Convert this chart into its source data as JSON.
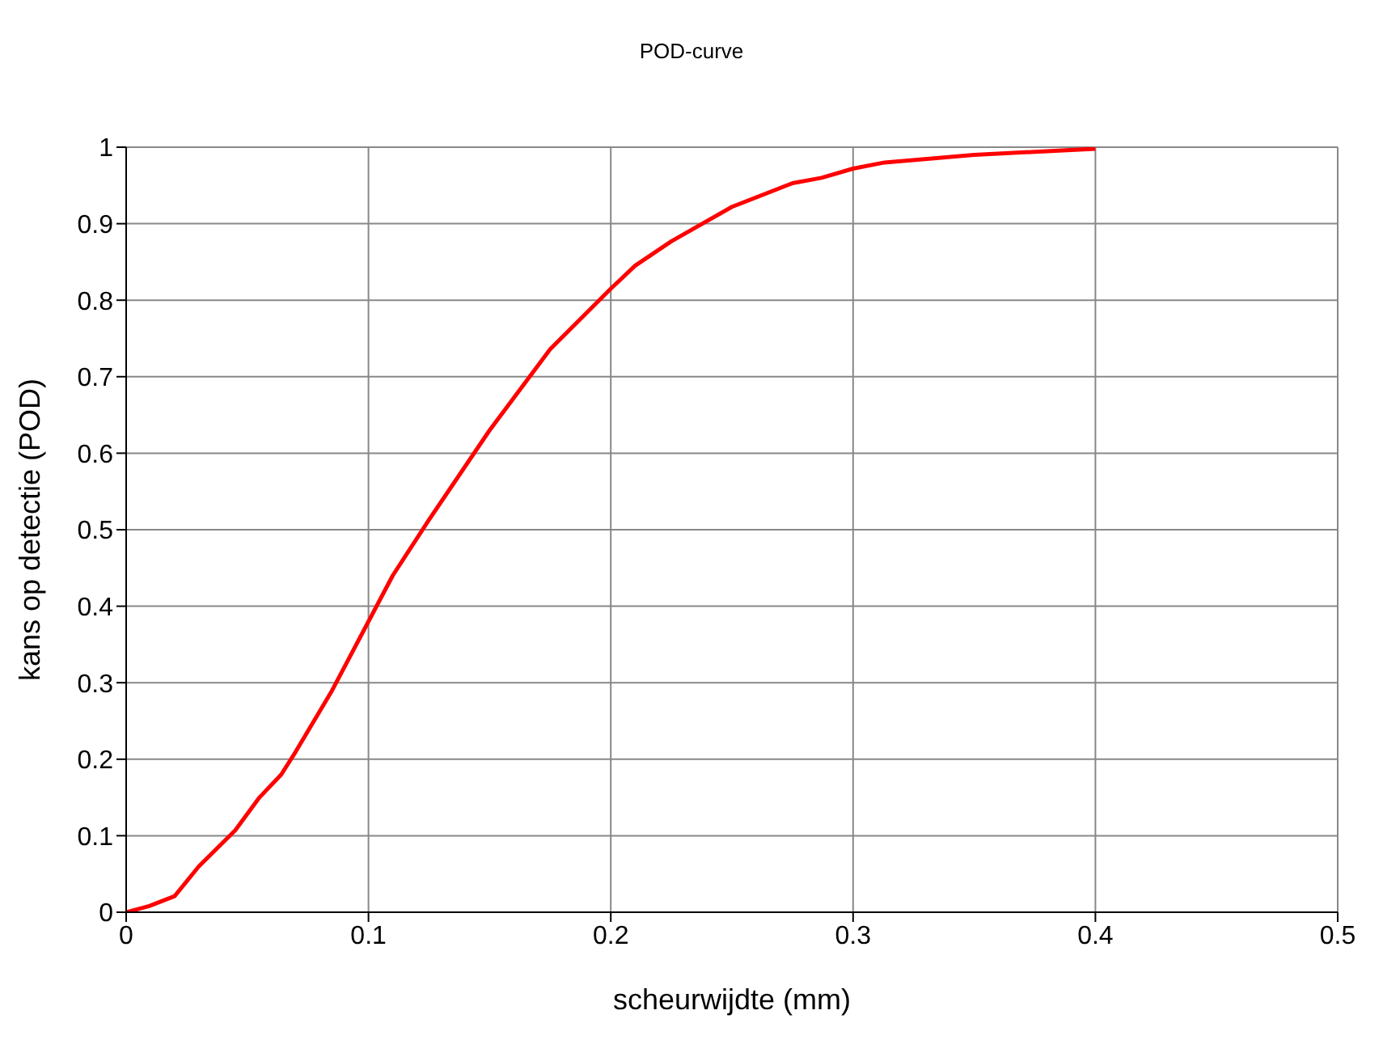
{
  "chart_data": {
    "type": "line",
    "title": "POD-curve",
    "xlabel": "scheurwijdte (mm)",
    "ylabel": "kans op detectie (POD)",
    "x": [
      0,
      0.0095,
      0.02,
      0.03,
      0.045,
      0.055,
      0.064,
      0.07,
      0.085,
      0.1,
      0.11,
      0.125,
      0.15,
      0.175,
      0.2,
      0.21,
      0.225,
      0.25,
      0.275,
      0.287,
      0.3,
      0.313,
      0.35,
      0.4
    ],
    "series": [
      {
        "color": "#ff0000",
        "values": [
          0,
          0.008,
          0.021,
          0.06,
          0.107,
          0.15,
          0.18,
          0.21,
          0.29,
          0.38,
          0.44,
          0.513,
          0.63,
          0.736,
          0.815,
          0.845,
          0.877,
          0.922,
          0.953,
          0.96,
          0.972,
          0.98,
          0.99,
          0.998
        ]
      }
    ],
    "xlim": [
      0,
      0.5
    ],
    "xticks": [
      0,
      0.1,
      0.2,
      0.3,
      0.4,
      0.5
    ],
    "ylim": [
      0,
      1
    ],
    "yticks": [
      0,
      0.1,
      0.2,
      0.3,
      0.4,
      0.5,
      0.6,
      0.7,
      0.8,
      0.9,
      1
    ],
    "grid": true,
    "legend": false,
    "marker": "none",
    "line_style": "solid"
  }
}
